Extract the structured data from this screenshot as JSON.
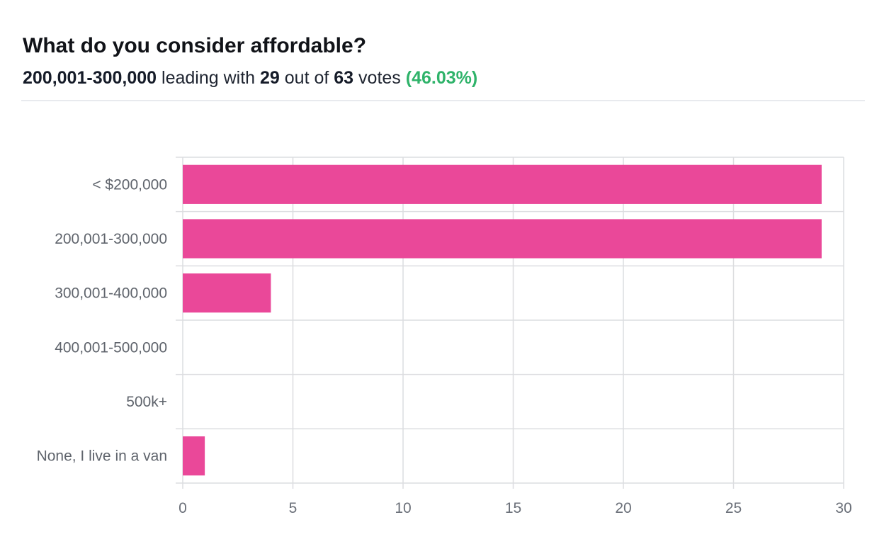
{
  "poll": {
    "question": "What do you consider affordable?",
    "leader": "200,001-300,000",
    "leading_text": "leading with",
    "leader_votes": "29",
    "out_of_text": "out of",
    "total_votes": "63",
    "votes_text": "votes",
    "leader_percent": "(46.03%)"
  },
  "chart_data": {
    "type": "bar",
    "orientation": "horizontal",
    "categories": [
      "< $200,000",
      "200,001-300,000",
      "300,001-400,000",
      "400,001-500,000",
      "500k+",
      "None, I live in a van"
    ],
    "values": [
      29,
      29,
      4,
      0,
      0,
      1
    ],
    "xlim": [
      0,
      30
    ],
    "xticks": [
      0,
      5,
      10,
      15,
      20,
      25,
      30
    ],
    "title": "",
    "xlabel": "",
    "ylabel": "",
    "grid": true,
    "bar_color": "#ea4899",
    "grid_color": "#dcdde0"
  }
}
